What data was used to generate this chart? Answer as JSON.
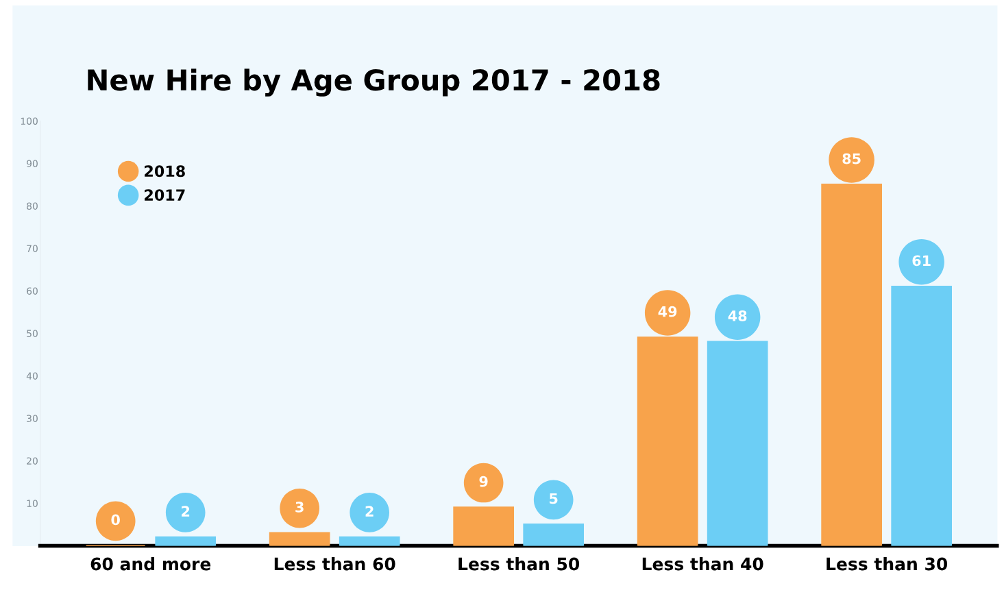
{
  "chart_data": {
    "type": "bar",
    "title": "New Hire by Age Group 2017 - 2018",
    "categories": [
      "60 and more",
      "Less than 60",
      "Less than 50",
      "Less than 40",
      "Less than 30"
    ],
    "series": [
      {
        "name": "2018",
        "color": "#f8a34b",
        "values": [
          0,
          3,
          9,
          49,
          85
        ]
      },
      {
        "name": "2017",
        "color": "#6ccef5",
        "values": [
          2,
          2,
          5,
          48,
          61
        ]
      }
    ],
    "ylim": [
      0,
      100
    ],
    "yticks": [
      10,
      20,
      30,
      40,
      50,
      60,
      70,
      80,
      90,
      100
    ],
    "data_labels": true,
    "legend": "top left",
    "marker": "circle",
    "grid": false
  }
}
